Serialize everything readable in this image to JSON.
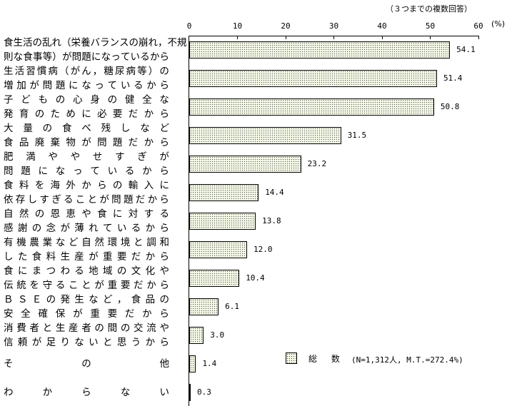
{
  "chart_data": {
    "type": "bar",
    "orientation": "horizontal",
    "title": "",
    "note": "（３つまでの複数回答）",
    "xlabel": "(%)",
    "ylabel": "",
    "xlim": [
      0,
      60
    ],
    "ticks": [
      "0",
      "10",
      "20",
      "30",
      "40",
      "50",
      "60"
    ],
    "grid": false,
    "legend_position": "bottom-right",
    "categories": [
      [
        "食生活の乱れ（栄養バランスの崩れ，不規",
        "則な食事等）が問題になっているから"
      ],
      [
        "生 活 習 慣 病（が ん，糖 尿 病 等）の",
        "増 加 が 問 題 に な っ て い る か ら"
      ],
      [
        "子 ど も の 心 身 の 健 全 な",
        "発 育 の た め に 必 要 だ か ら"
      ],
      [
        "大 量 の 食 べ 残 し な ど",
        "食 品 廃 棄 物 が 問 題 だ か ら"
      ],
      [
        "肥 満 や や せ す ぎ が",
        "問 題 に な っ て い る か ら"
      ],
      [
        "食 料 を 海 外 か ら の 輸 入 に",
        "依 存 し す ぎ る こ と が 問 題 だ か ら"
      ],
      [
        "自 然 の 恩 恵 や 食 に 対 す る",
        "感 謝 の 念 が 薄 れ て い る か ら"
      ],
      [
        "有 機 農 業 な ど 自 然 環 境 と 調 和",
        "し た 食 料 生 産 が 重 要 だ か ら"
      ],
      [
        "食 に ま つ わ る 地 域 の 文 化 や",
        "伝 統 を 守 る こ と が 重 要 だ か ら"
      ],
      [
        "Ｂ Ｓ Ｅ の 発 生 な ど，食 品 の",
        "安 全 確 保 が 重 要 だ か ら"
      ],
      [
        "消 費 者 と 生 産 者 の 間 の 交 流 や",
        "信 頼 が 足 り な い と 思 う か ら"
      ],
      [
        "そ の 他"
      ],
      [
        "わ か ら な い"
      ]
    ],
    "series": [
      {
        "name": "総数",
        "values": [
          54.1,
          51.4,
          50.8,
          31.5,
          23.2,
          14.4,
          13.8,
          12.0,
          10.4,
          6.1,
          3.0,
          1.4,
          0.3
        ],
        "labels": [
          "54.1",
          "51.4",
          "50.8",
          "31.5",
          "23.2",
          "14.4",
          "13.8",
          "12.0",
          "10.4",
          "6.1",
          "3.0",
          "1.4",
          "0.3"
        ]
      }
    ],
    "legend": {
      "label": "総 数",
      "sample": "(N=1,312人, M.T.=272.4%)"
    }
  }
}
